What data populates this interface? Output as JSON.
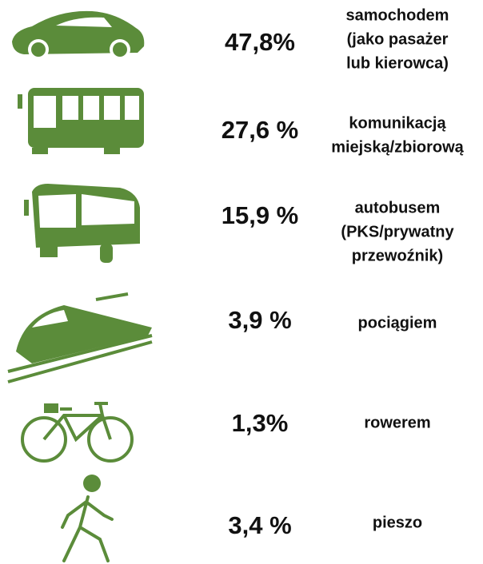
{
  "rows": [
    {
      "value": "47,8%",
      "label": [
        "samochodem",
        "(jako pasażer",
        "lub kierowca)"
      ]
    },
    {
      "value": "27,6 %",
      "label": [
        "komunikacją",
        "miejską/zbiorową"
      ]
    },
    {
      "value": "15,9 %",
      "label": [
        "autobusem",
        "(PKS/prywatny",
        "przewoźnik)"
      ]
    },
    {
      "value": "3,9 %",
      "label": [
        "pociągiem"
      ]
    },
    {
      "value": "1,3%",
      "label": [
        "rowerem"
      ]
    },
    {
      "value": "3,4 %",
      "label": [
        "pieszo"
      ]
    }
  ]
}
